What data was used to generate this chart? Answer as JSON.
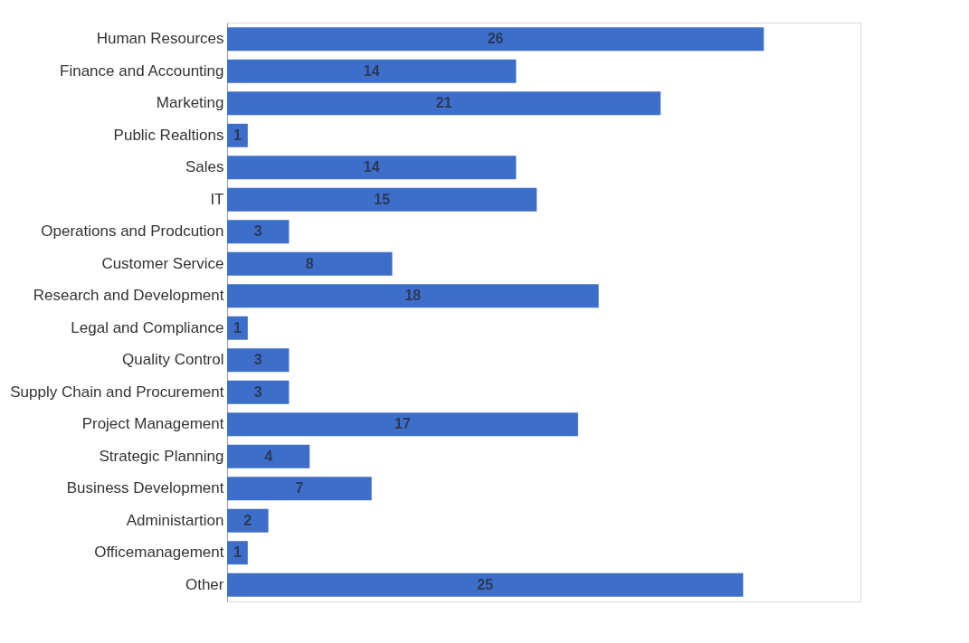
{
  "chart_data": {
    "type": "bar",
    "orientation": "horizontal",
    "data_labels": true,
    "categories": [
      "Human Resources",
      "Finance and Accounting",
      "Marketing",
      "Public Realtions",
      "Sales",
      "IT",
      "Operations and Prodcution",
      "Customer Service",
      "Research and Development",
      "Legal and Compliance",
      "Quality Control",
      "Supply Chain and Procurement",
      "Project Management",
      "Strategic Planning",
      "Business Development",
      "Administartion",
      "Officemanagement",
      "Other"
    ],
    "series": [
      {
        "color": "#3d6ec9",
        "values": [
          26,
          14,
          21,
          1,
          14,
          15,
          3,
          8,
          18,
          1,
          3,
          3,
          17,
          4,
          7,
          2,
          1,
          25
        ]
      }
    ]
  }
}
